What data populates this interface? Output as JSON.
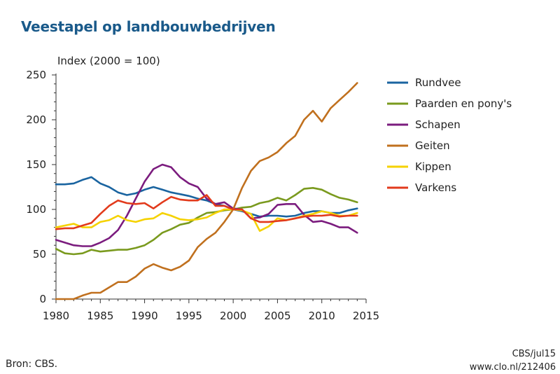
{
  "title": "Veestapel op landbouwbedrijven",
  "source": "Bron: CBS.",
  "credit_line1": "CBS/jul15",
  "credit_line2": "www.clo.nl/212406",
  "chart_data": {
    "type": "line",
    "title": "Veestapel op landbouwbedrijven",
    "ylabel": "Index (2000 = 100)",
    "xlabel": "",
    "xlim": [
      1980,
      2015
    ],
    "ylim": [
      0,
      250
    ],
    "xticks": [
      1980,
      1985,
      1990,
      1995,
      2000,
      2005,
      2010,
      2015
    ],
    "yticks": [
      0,
      50,
      100,
      150,
      200,
      250
    ],
    "grid": false,
    "legend": "right",
    "x": [
      1980,
      1981,
      1982,
      1983,
      1984,
      1985,
      1986,
      1987,
      1988,
      1989,
      1990,
      1991,
      1992,
      1993,
      1994,
      1995,
      1996,
      1997,
      1998,
      1999,
      2000,
      2001,
      2002,
      2003,
      2004,
      2005,
      2006,
      2007,
      2008,
      2009,
      2010,
      2011,
      2012,
      2013,
      2014
    ],
    "series": [
      {
        "name": "Rundvee",
        "color": "#1a64a0",
        "values": [
          128,
          128,
          129,
          133,
          136,
          129,
          125,
          119,
          116,
          118,
          122,
          125,
          122,
          119,
          117,
          115,
          112,
          110,
          106,
          104,
          100,
          98,
          95,
          92,
          93,
          93,
          92,
          93,
          96,
          98,
          98,
          96,
          96,
          99,
          101
        ]
      },
      {
        "name": "Paarden en pony's",
        "color": "#7a9a1e",
        "values": [
          56,
          51,
          50,
          51,
          55,
          53,
          54,
          55,
          55,
          57,
          60,
          66,
          74,
          78,
          83,
          85,
          91,
          96,
          97,
          99,
          100,
          102,
          103,
          107,
          109,
          113,
          110,
          116,
          123,
          124,
          122,
          117,
          113,
          111,
          108
        ]
      },
      {
        "name": "Schapen",
        "color": "#7b1c7e",
        "values": [
          66,
          63,
          60,
          59,
          59,
          63,
          68,
          77,
          93,
          112,
          131,
          145,
          150,
          147,
          136,
          129,
          125,
          112,
          106,
          108,
          101,
          100,
          90,
          91,
          95,
          105,
          106,
          106,
          94,
          86,
          87,
          84,
          80,
          80,
          74
        ]
      },
      {
        "name": "Geiten",
        "color": "#c0701e",
        "values": [
          0,
          0,
          0,
          4,
          7,
          7,
          13,
          19,
          19,
          25,
          34,
          39,
          35,
          32,
          36,
          43,
          58,
          67,
          74,
          86,
          100,
          124,
          143,
          154,
          158,
          164,
          174,
          182,
          200,
          210,
          198,
          213,
          222,
          231,
          241
        ]
      },
      {
        "name": "Kippen",
        "color": "#f5d200",
        "values": [
          80,
          82,
          84,
          80,
          80,
          86,
          88,
          93,
          88,
          86,
          89,
          90,
          96,
          93,
          89,
          88,
          89,
          91,
          96,
          100,
          100,
          99,
          95,
          76,
          81,
          90,
          88,
          90,
          93,
          95,
          98,
          96,
          93,
          93,
          96
        ]
      },
      {
        "name": "Varkens",
        "color": "#e23a1c",
        "values": [
          78,
          79,
          79,
          82,
          85,
          95,
          104,
          110,
          107,
          106,
          107,
          101,
          108,
          114,
          111,
          110,
          110,
          116,
          104,
          104,
          100,
          100,
          90,
          86,
          86,
          87,
          88,
          90,
          92,
          93,
          93,
          94,
          92,
          93,
          93
        ]
      }
    ]
  }
}
